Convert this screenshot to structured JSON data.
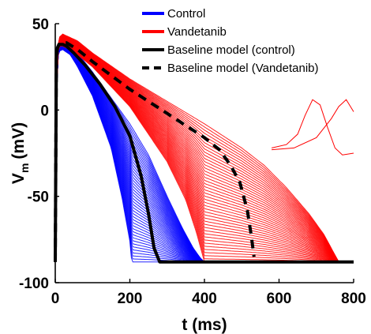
{
  "chart_data": {
    "type": "line",
    "title": "",
    "xlabel": "t (ms)",
    "ylabel_main": "V",
    "ylabel_sub": "m",
    "ylabel_unit": "(mV)",
    "xlim": [
      0,
      800
    ],
    "ylim": [
      -100,
      50
    ],
    "xticks": [
      0,
      200,
      400,
      600,
      800
    ],
    "yticks": [
      50,
      0,
      -50,
      -100
    ],
    "xtick_labels": [
      "0",
      "200",
      "400",
      "600",
      "800"
    ],
    "ytick_labels": [
      "50",
      "0",
      "-50",
      "-100"
    ],
    "grid": false,
    "legend_position": "top-right",
    "colors": {
      "control": "#0000ff",
      "vandetanib": "#ff0000",
      "baseline": "#000000"
    },
    "series": [
      {
        "name": "Control",
        "style": "band",
        "apd_range_ms": [
          205,
          400
        ],
        "upper": {
          "x": [
            0,
            2,
            5,
            10,
            20,
            40,
            60,
            100,
            150,
            200,
            250,
            300,
            340,
            370,
            390,
            400,
            800
          ],
          "y": [
            -88,
            -20,
            30,
            40,
            42,
            38,
            33,
            22,
            7,
            -8,
            -26,
            -50,
            -68,
            -80,
            -86,
            -88,
            -88
          ]
        },
        "lower": {
          "x": [
            0,
            2,
            5,
            10,
            20,
            40,
            60,
            100,
            150,
            180,
            200,
            205,
            800
          ],
          "y": [
            -88,
            -20,
            28,
            34,
            35,
            32,
            25,
            8,
            -22,
            -52,
            -76,
            -88,
            -88
          ]
        }
      },
      {
        "name": "Vandetanib",
        "style": "band",
        "apd_range_ms": [
          400,
          760
        ],
        "upper": {
          "x": [
            0,
            2,
            5,
            10,
            20,
            40,
            60,
            100,
            200,
            300,
            400,
            450,
            500,
            560,
            620,
            680,
            720,
            745,
            760,
            800
          ],
          "y": [
            -88,
            -20,
            32,
            42,
            44,
            42,
            40,
            33,
            18,
            5,
            -8,
            -15,
            -22,
            -32,
            -45,
            -60,
            -72,
            -82,
            -88,
            -88
          ]
        },
        "lower": {
          "x": [
            0,
            2,
            5,
            10,
            20,
            40,
            60,
            100,
            200,
            300,
            350,
            380,
            400,
            800
          ],
          "y": [
            -88,
            -20,
            30,
            37,
            37,
            35,
            32,
            25,
            2,
            -30,
            -52,
            -72,
            -88,
            -88
          ]
        },
        "oscillating_traces": [
          {
            "x": [
              580,
              620,
              650,
              670,
              690,
              710,
              730,
              750,
              770,
              800
            ],
            "y": [
              -22,
              -20,
              -14,
              -3,
              6,
              3,
              -10,
              -22,
              -26,
              -25
            ]
          },
          {
            "x": [
              580,
              640,
              700,
              740,
              760,
              780,
              800
            ],
            "y": [
              -23,
              -22,
              -16,
              -5,
              2,
              6,
              -1
            ]
          }
        ]
      },
      {
        "name": "Baseline model (control)",
        "style": "solid",
        "x": [
          0,
          3,
          6,
          10,
          20,
          30,
          50,
          80,
          120,
          160,
          200,
          230,
          250,
          265,
          280,
          800
        ],
        "y": [
          -88,
          30,
          36,
          38,
          38,
          37,
          33,
          26,
          15,
          2,
          -15,
          -38,
          -60,
          -80,
          -88,
          -88
        ]
      },
      {
        "name": "Baseline model (Vandetanib)",
        "style": "dashed",
        "x": [
          0,
          3,
          6,
          10,
          20,
          30,
          60,
          100,
          150,
          200,
          250,
          300,
          350,
          400,
          440,
          470,
          495,
          515,
          525,
          533
        ],
        "y": [
          -88,
          30,
          36,
          38,
          39,
          39,
          35,
          28,
          20,
          12,
          5,
          -2,
          -9,
          -16,
          -23,
          -32,
          -42,
          -58,
          -72,
          -85
        ]
      }
    ]
  }
}
